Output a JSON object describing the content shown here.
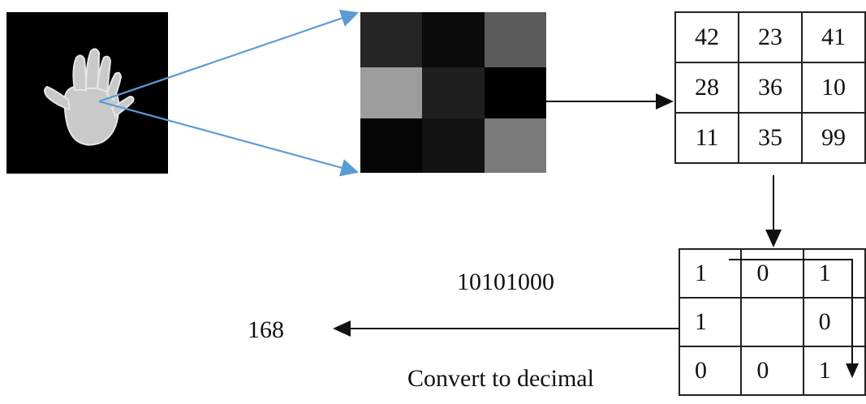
{
  "colors": {
    "blue_arrow": "#5b9bd5",
    "black_arrow": "#111111"
  },
  "pixel_grid": [
    [
      "#252525",
      "#0b0b0b",
      "#5a5a5a"
    ],
    [
      "#9d9d9d",
      "#1f1f1f",
      "#000000"
    ],
    [
      "#050505",
      "#121212",
      "#7a7a7a"
    ]
  ],
  "value_table": [
    [
      "42",
      "23",
      "41"
    ],
    [
      "28",
      "36",
      "10"
    ],
    [
      "11",
      "35",
      "99"
    ]
  ],
  "binary_table": [
    [
      "1",
      "0",
      "1"
    ],
    [
      "1",
      "",
      "0"
    ],
    [
      "0",
      "0",
      "1"
    ]
  ],
  "labels": {
    "binary": "10101000",
    "decimal": "168",
    "convert": "Convert to decimal"
  }
}
